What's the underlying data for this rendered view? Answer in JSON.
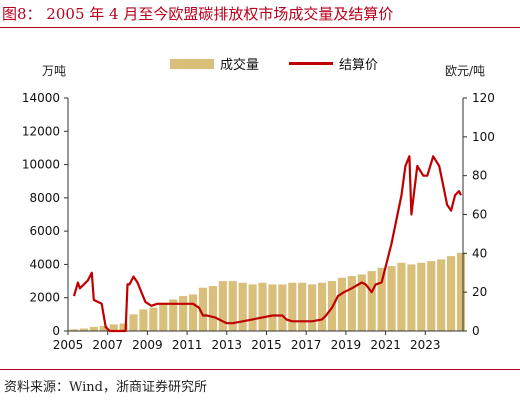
{
  "figure": {
    "title": "图8：  2005 年 4 月至今欧盟碳排放权市场成交量及结算价",
    "source": "资料来源：Wind，浙商证券研究所"
  },
  "chart_data": {
    "type": "bar+line",
    "left_unit": "万吨",
    "right_unit": "欧元/吨",
    "legend": [
      "成交量",
      "结算价"
    ],
    "legend_position": "top-center",
    "grid": false,
    "y_left": {
      "min": 0,
      "max": 14000,
      "ticks": [
        "0",
        "2000",
        "4000",
        "6000",
        "8000",
        "10000",
        "12000",
        "14000"
      ]
    },
    "y_right": {
      "min": 0,
      "max": 120,
      "ticks": [
        "0",
        "20",
        "40",
        "60",
        "80",
        "100",
        "120"
      ]
    },
    "x_ticks": [
      "2005",
      "2007",
      "2009",
      "2011",
      "2013",
      "2015",
      "2017",
      "2019",
      "2021",
      "2023"
    ],
    "x_range": [
      2005.0,
      2024.9
    ],
    "series": [
      {
        "name": "成交量",
        "axis": "left",
        "kind": "bar",
        "color": "#d9bf7a",
        "x": [
          2005.3,
          2005.8,
          2006.3,
          2006.8,
          2007.3,
          2007.8,
          2008.3,
          2008.8,
          2009.3,
          2009.8,
          2010.3,
          2010.8,
          2011.3,
          2011.8,
          2012.3,
          2012.8,
          2013.3,
          2013.8,
          2014.3,
          2014.8,
          2015.3,
          2015.8,
          2016.3,
          2016.8,
          2017.3,
          2017.8,
          2018.3,
          2018.8,
          2019.3,
          2019.8,
          2020.3,
          2020.8,
          2021.3,
          2021.8,
          2022.3,
          2022.8,
          2023.3,
          2023.8,
          2024.3,
          2024.8
        ],
        "y": [
          100,
          150,
          250,
          300,
          400,
          450,
          1000,
          1300,
          1400,
          1700,
          1900,
          2100,
          2200,
          2600,
          2700,
          3000,
          3000,
          2900,
          2800,
          2900,
          2800,
          2800,
          2900,
          2900,
          2800,
          2900,
          3000,
          3200,
          3300,
          3400,
          3600,
          3800,
          3900,
          4100,
          4000,
          4100,
          4200,
          4300,
          4500,
          4700
        ]
      },
      {
        "name": "结算价",
        "axis": "right",
        "kind": "line",
        "color": "#c00000",
        "x": [
          2005.3,
          2005.5,
          2005.6,
          2005.8,
          2006.0,
          2006.2,
          2006.3,
          2006.5,
          2006.7,
          2006.9,
          2007.1,
          2007.2,
          2007.4,
          2007.6,
          2007.9,
          2008.0,
          2008.1,
          2008.3,
          2008.5,
          2008.7,
          2008.9,
          2009.2,
          2009.5,
          2009.8,
          2010.3,
          2010.8,
          2011.3,
          2011.6,
          2011.8,
          2012.0,
          2012.4,
          2012.8,
          2013.0,
          2013.3,
          2013.8,
          2014.3,
          2014.8,
          2015.3,
          2015.8,
          2016.0,
          2016.3,
          2016.8,
          2017.3,
          2017.8,
          2018.0,
          2018.3,
          2018.6,
          2018.9,
          2019.3,
          2019.8,
          2020.0,
          2020.3,
          2020.5,
          2020.8,
          2021.0,
          2021.3,
          2021.6,
          2021.8,
          2022.0,
          2022.2,
          2022.3,
          2022.6,
          2022.9,
          2023.1,
          2023.4,
          2023.7,
          2023.9,
          2024.1,
          2024.3,
          2024.5,
          2024.7,
          2024.8
        ],
        "y": [
          18,
          25,
          22,
          24,
          26,
          30,
          16,
          15,
          14,
          2,
          0,
          0,
          0,
          0,
          0,
          24,
          24,
          28,
          25,
          20,
          15,
          13,
          14,
          14,
          14,
          14,
          14,
          12,
          8,
          8,
          7,
          5,
          4,
          4,
          5,
          6,
          7,
          8,
          8,
          6,
          5,
          5,
          5,
          6,
          8,
          12,
          18,
          20,
          22,
          25,
          24,
          20,
          24,
          25,
          33,
          45,
          60,
          70,
          85,
          90,
          60,
          85,
          80,
          80,
          90,
          85,
          75,
          65,
          62,
          70,
          72,
          70
        ]
      }
    ]
  }
}
